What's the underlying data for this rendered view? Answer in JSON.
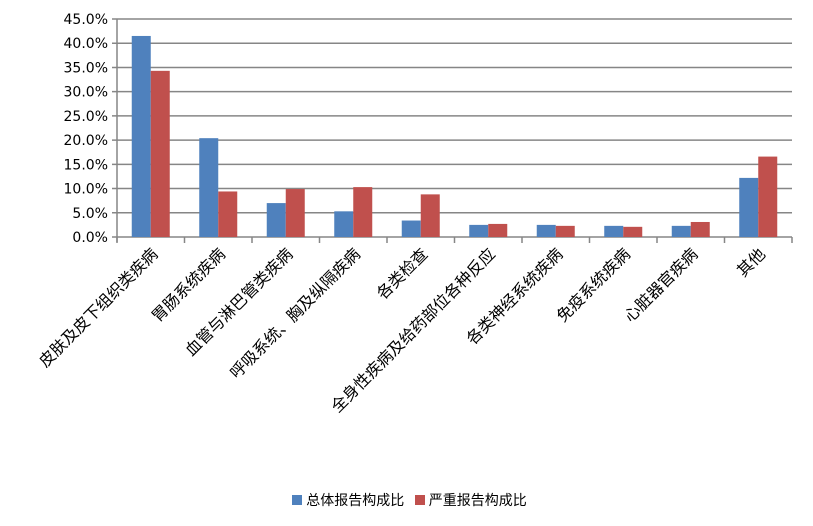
{
  "chart_data": {
    "type": "bar",
    "categories": [
      "皮肤及皮下组织类疾病",
      "胃肠系统疾病",
      "血管与淋巴管类疾病",
      "呼吸系统、胸及纵隔疾病",
      "各类检查",
      "全身性疾病及给药部位各种反应",
      "各类神经系统疾病",
      "免疫系统疾病",
      "心脏器官疾病",
      "其他"
    ],
    "series": [
      {
        "name": "总体报告构成比",
        "color": "#4F81BD",
        "values": [
          41.5,
          20.4,
          7.0,
          5.3,
          3.4,
          2.5,
          2.5,
          2.3,
          2.3,
          12.2
        ]
      },
      {
        "name": "严重报告构成比",
        "color": "#C0504D",
        "values": [
          34.3,
          9.4,
          9.9,
          10.3,
          8.8,
          2.7,
          2.3,
          2.1,
          3.1,
          16.6
        ]
      }
    ],
    "ylim": [
      0,
      45
    ],
    "yticks": [
      "0.0%",
      "5.0%",
      "10.0%",
      "15.0%",
      "20.0%",
      "25.0%",
      "30.0%",
      "35.0%",
      "40.0%",
      "45.0%"
    ],
    "grid": true,
    "legend": "bottom"
  }
}
